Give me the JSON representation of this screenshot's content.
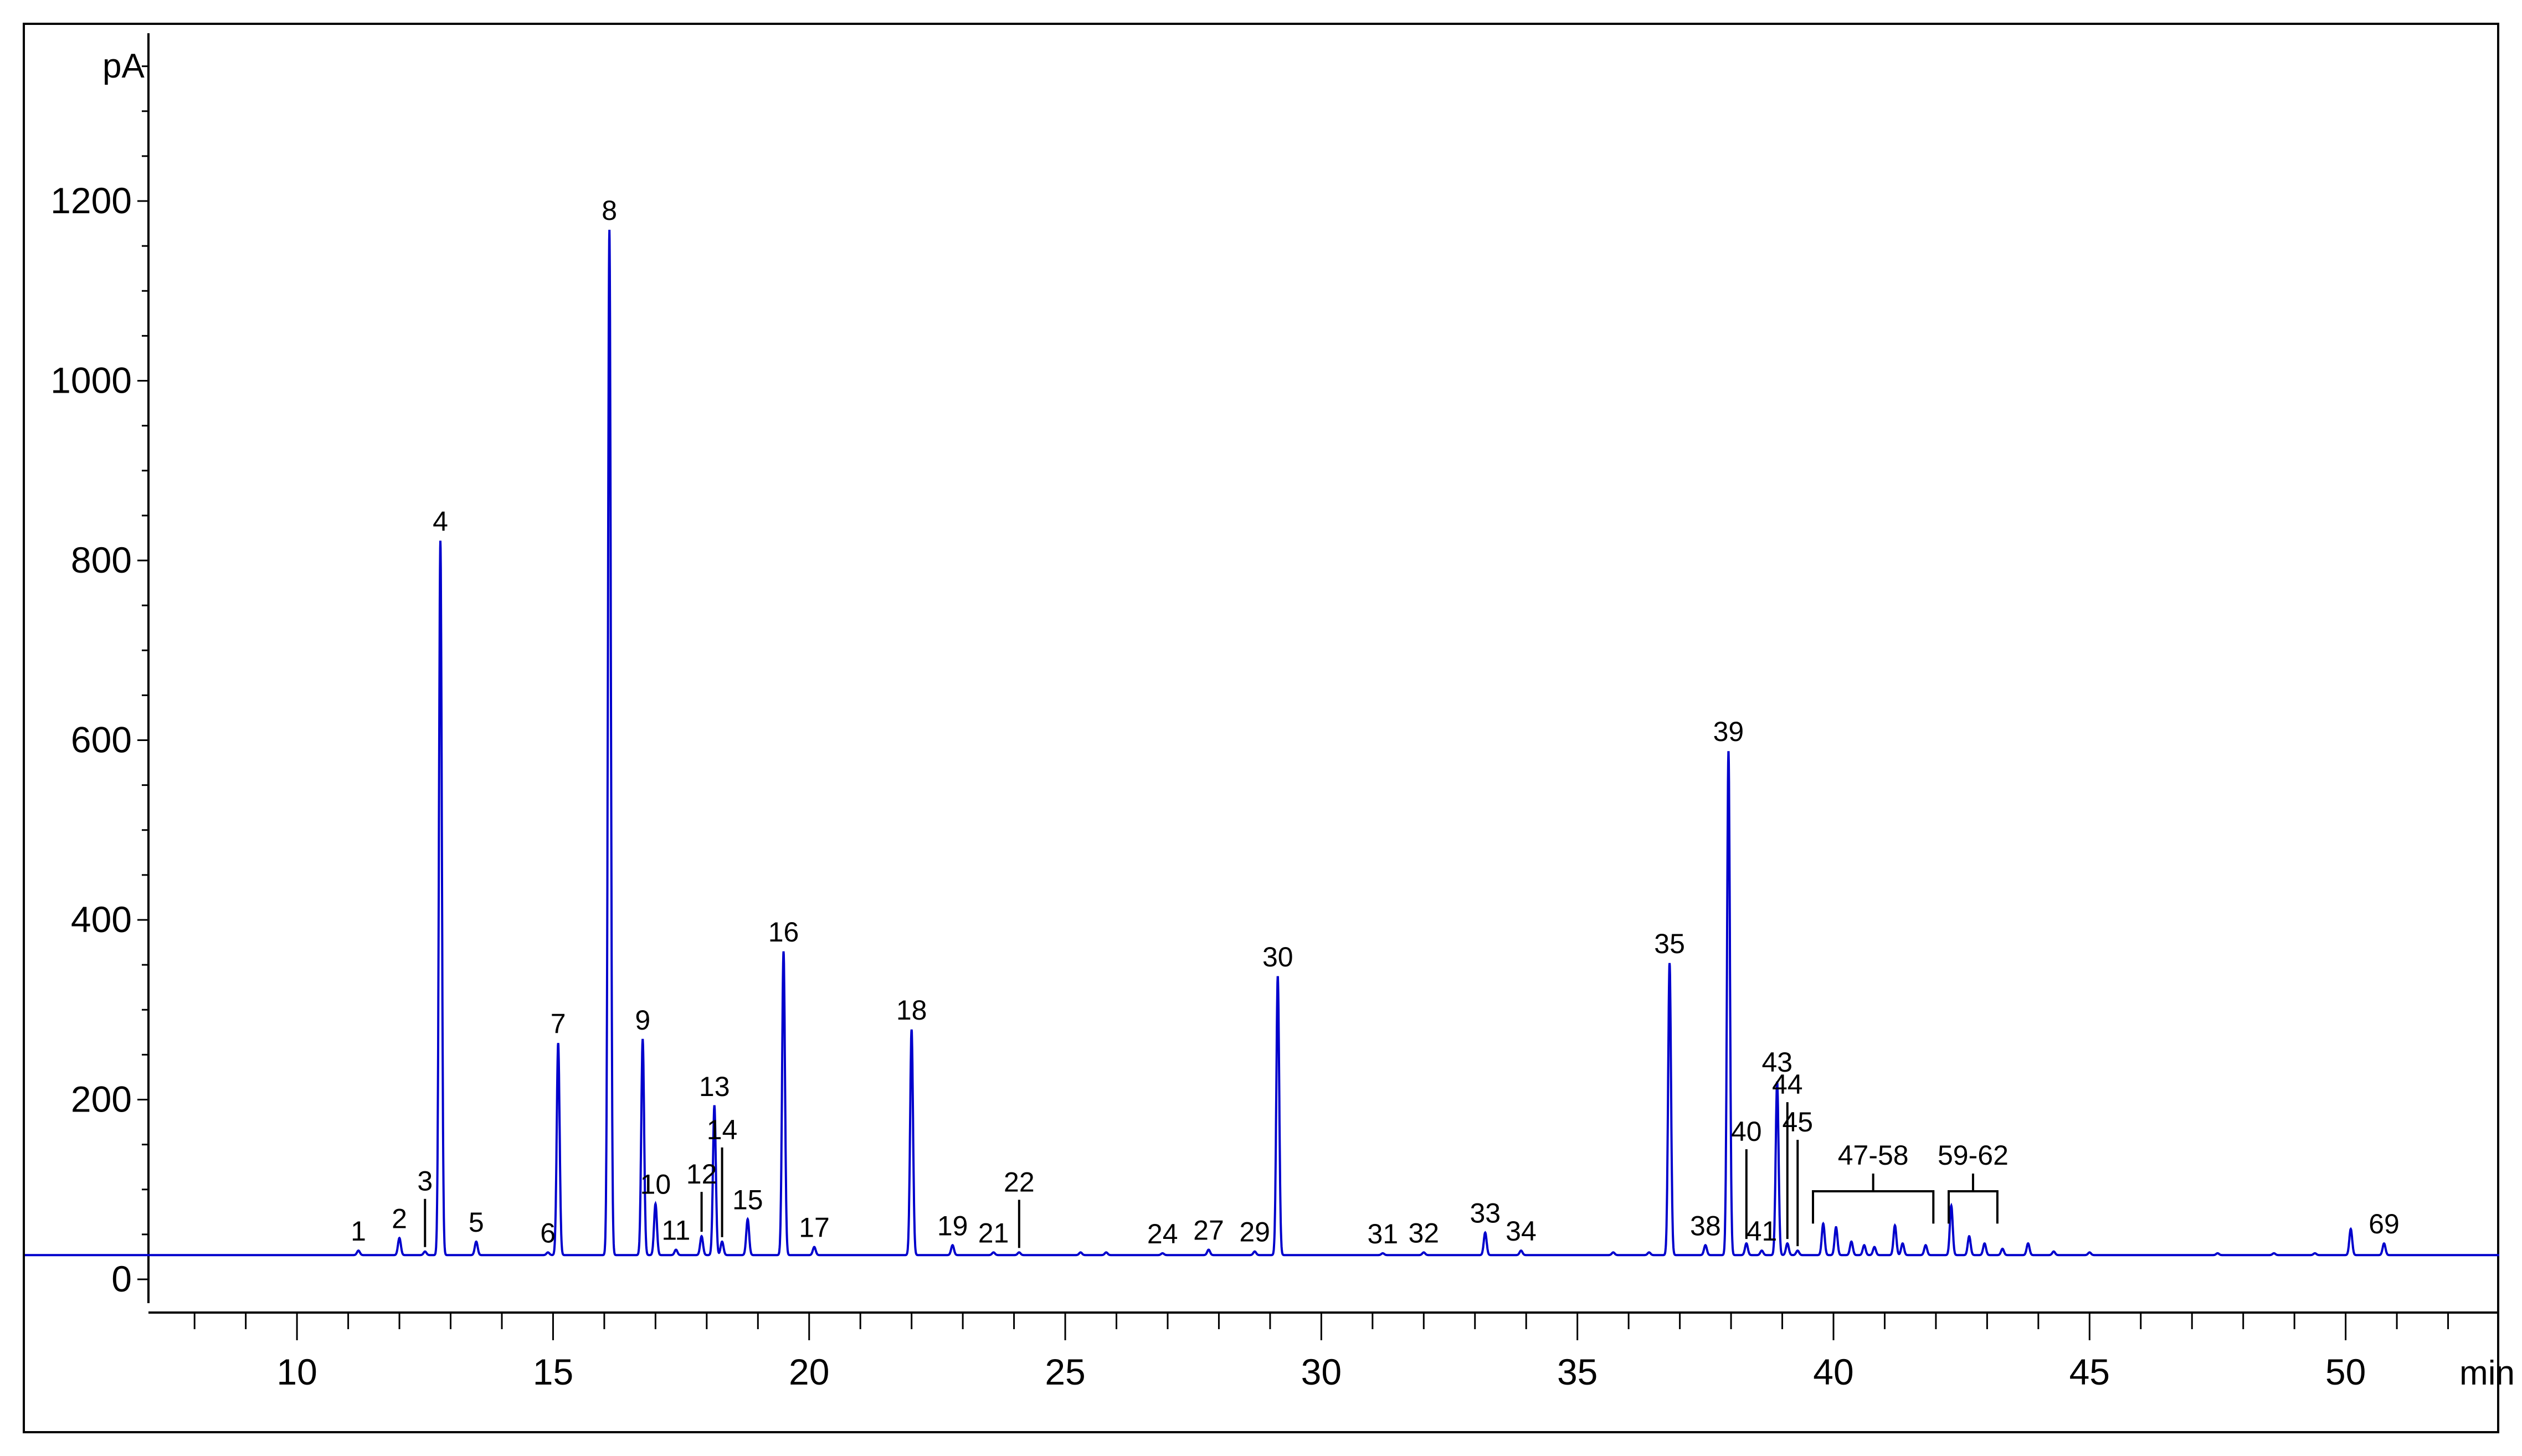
{
  "chart_data": {
    "type": "line",
    "title": "",
    "xlabel": "",
    "ylabel": "",
    "x_unit": "min",
    "y_unit": "pA",
    "xlim": [
      7.1,
      53.0
    ],
    "ylim": [
      -20,
      1380
    ],
    "x_ticks": [
      10,
      15,
      20,
      25,
      30,
      35,
      40,
      45,
      50
    ],
    "y_ticks": [
      0,
      200,
      400,
      600,
      800,
      1000,
      1200
    ],
    "grid": false,
    "legend": "none",
    "line_color": "#0000cc",
    "baseline": 27,
    "series": [
      {
        "peaks": [
          {
            "label": "1",
            "x": 11.2,
            "y": 32
          },
          {
            "label": "2",
            "x": 12.0,
            "y": 46
          },
          {
            "label": "3",
            "x": 12.5,
            "y": 31
          },
          {
            "label": "4",
            "x": 12.8,
            "y": 822
          },
          {
            "label": "5",
            "x": 13.5,
            "y": 42
          },
          {
            "label": "6",
            "x": 14.9,
            "y": 30
          },
          {
            "label": "7",
            "x": 15.1,
            "y": 263
          },
          {
            "label": "8",
            "x": 16.1,
            "y": 1168
          },
          {
            "label": "9",
            "x": 16.75,
            "y": 267
          },
          {
            "label": "10",
            "x": 17.0,
            "y": 84
          },
          {
            "label": "11",
            "x": 17.4,
            "y": 33
          },
          {
            "label": "12",
            "x": 17.9,
            "y": 48
          },
          {
            "label": "13",
            "x": 18.15,
            "y": 193
          },
          {
            "label": "14",
            "x": 18.3,
            "y": 42
          },
          {
            "label": "15",
            "x": 18.8,
            "y": 67
          },
          {
            "label": "16",
            "x": 19.5,
            "y": 365
          },
          {
            "label": "17",
            "x": 20.1,
            "y": 36
          },
          {
            "label": "18",
            "x": 22.0,
            "y": 278
          },
          {
            "label": "19",
            "x": 22.8,
            "y": 38
          },
          {
            "label": "21",
            "x": 23.6,
            "y": 30
          },
          {
            "label": "22",
            "x": 24.1,
            "y": 30
          },
          {
            "label": "24",
            "x": 26.9,
            "y": 29
          },
          {
            "label": "27",
            "x": 27.8,
            "y": 33
          },
          {
            "label": "29",
            "x": 28.7,
            "y": 31
          },
          {
            "label": "30",
            "x": 29.15,
            "y": 337
          },
          {
            "label": "31",
            "x": 31.2,
            "y": 29
          },
          {
            "label": "32",
            "x": 32.0,
            "y": 30
          },
          {
            "label": "33",
            "x": 33.2,
            "y": 52
          },
          {
            "label": "34",
            "x": 33.9,
            "y": 32
          },
          {
            "label": "35",
            "x": 36.8,
            "y": 352
          },
          {
            "label": "38",
            "x": 37.5,
            "y": 38
          },
          {
            "label": "39",
            "x": 37.95,
            "y": 588
          },
          {
            "label": "40",
            "x": 38.3,
            "y": 40
          },
          {
            "label": "41",
            "x": 38.6,
            "y": 32
          },
          {
            "label": "43",
            "x": 38.9,
            "y": 220
          },
          {
            "label": "44",
            "x": 39.1,
            "y": 40
          },
          {
            "label": "45",
            "x": 39.3,
            "y": 32
          },
          {
            "label": "69",
            "x": 50.75,
            "y": 40
          }
        ],
        "minor_peaks": [
          {
            "x": 39.8,
            "y": 62
          },
          {
            "x": 40.05,
            "y": 58
          },
          {
            "x": 40.35,
            "y": 42
          },
          {
            "x": 40.6,
            "y": 38
          },
          {
            "x": 40.8,
            "y": 36
          },
          {
            "x": 41.2,
            "y": 60
          },
          {
            "x": 41.35,
            "y": 40
          },
          {
            "x": 41.8,
            "y": 38
          },
          {
            "x": 42.3,
            "y": 82
          },
          {
            "x": 42.65,
            "y": 48
          },
          {
            "x": 42.95,
            "y": 40
          },
          {
            "x": 43.3,
            "y": 34
          },
          {
            "x": 43.8,
            "y": 40
          },
          {
            "x": 44.3,
            "y": 31
          },
          {
            "x": 45.0,
            "y": 30
          },
          {
            "x": 47.5,
            "y": 29
          },
          {
            "x": 48.6,
            "y": 29
          },
          {
            "x": 49.4,
            "y": 29
          },
          {
            "x": 50.1,
            "y": 56
          },
          {
            "x": 25.3,
            "y": 30
          },
          {
            "x": 25.8,
            "y": 30
          },
          {
            "x": 35.7,
            "y": 30
          },
          {
            "x": 36.4,
            "y": 30
          }
        ]
      }
    ],
    "annotations": [
      {
        "text": "47-58",
        "x_start": 39.6,
        "x_end": 41.95
      },
      {
        "text": "59-62",
        "x_start": 42.25,
        "x_end": 43.2
      }
    ]
  }
}
